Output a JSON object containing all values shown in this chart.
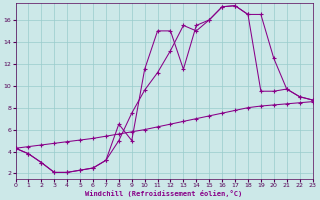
{
  "xlabel": "Windchill (Refroidissement éolien,°C)",
  "bg_color": "#cce8e8",
  "line_color": "#880088",
  "grid_color": "#99cccc",
  "xlim": [
    0,
    23
  ],
  "ylim": [
    1.5,
    17.5
  ],
  "xticks": [
    0,
    1,
    2,
    3,
    4,
    5,
    6,
    7,
    8,
    9,
    10,
    11,
    12,
    13,
    14,
    15,
    16,
    17,
    18,
    19,
    20,
    21,
    22,
    23
  ],
  "yticks": [
    2,
    4,
    6,
    8,
    10,
    12,
    14,
    16
  ],
  "line1_x": [
    0,
    1,
    2,
    3,
    4,
    5,
    6,
    7,
    8,
    9,
    10,
    11,
    12,
    13,
    14,
    15,
    16,
    17,
    18,
    19,
    20,
    21,
    22,
    23
  ],
  "line1_y": [
    4.3,
    3.8,
    3.0,
    2.1,
    2.1,
    2.3,
    2.5,
    3.2,
    5.0,
    7.5,
    9.6,
    11.2,
    13.2,
    15.5,
    15.0,
    16.0,
    17.2,
    17.3,
    16.5,
    16.5,
    12.5,
    9.7,
    9.0,
    8.7
  ],
  "line2_x": [
    0,
    1,
    2,
    3,
    4,
    5,
    6,
    7,
    8,
    9,
    10,
    11,
    12,
    13,
    14,
    15,
    16,
    17,
    18,
    19,
    20,
    21,
    22,
    23
  ],
  "line2_y": [
    4.3,
    3.8,
    3.0,
    2.1,
    2.1,
    2.3,
    2.5,
    3.2,
    6.5,
    5.0,
    11.5,
    15.0,
    15.0,
    11.5,
    15.5,
    16.0,
    17.2,
    17.3,
    16.5,
    9.5,
    9.5,
    9.7,
    9.0,
    8.7
  ],
  "line3_x": [
    0,
    1,
    2,
    3,
    4,
    5,
    6,
    7,
    8,
    9,
    10,
    11,
    12,
    13,
    14,
    15,
    16,
    17,
    18,
    19,
    20,
    21,
    22,
    23
  ],
  "line3_y": [
    4.3,
    4.45,
    4.6,
    4.75,
    4.9,
    5.05,
    5.2,
    5.4,
    5.6,
    5.8,
    6.0,
    6.25,
    6.5,
    6.75,
    7.0,
    7.25,
    7.5,
    7.75,
    8.0,
    8.15,
    8.25,
    8.35,
    8.45,
    8.55
  ]
}
